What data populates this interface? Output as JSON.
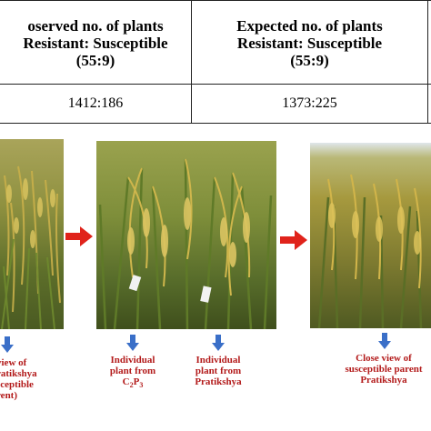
{
  "table": {
    "col1_header": [
      "oserved no. of plants",
      "Resistant: Susceptible",
      "(55:9)"
    ],
    "col2_header": [
      "Expected no. of plants",
      "Resistant: Susceptible",
      "(55:9)"
    ],
    "col1_value": "1412:186",
    "col2_value": "1373:225"
  },
  "captions": {
    "left": [
      "view of",
      "ratikshya",
      "sceptible",
      "rent)"
    ],
    "middle_left": [
      "Individual",
      "plant from",
      "C2P3"
    ],
    "middle_right": [
      "Individual",
      "plant from",
      "Pratikshya"
    ],
    "right": [
      "Close view of",
      "susceptible parent",
      "Pratikshya"
    ]
  },
  "colors": {
    "caption_red": "#b31b1b",
    "arrow_red": "#e0231b",
    "arrow_blue": "#3a6fc8"
  },
  "icons": {
    "flow_arrow": "right-arrow-icon",
    "caption_arrow": "down-arrow-icon"
  }
}
